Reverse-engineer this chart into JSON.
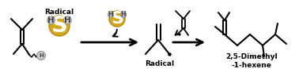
{
  "bg_color": "#ffffff",
  "text_radical_top": "Radical",
  "text_radical_bottom": "Radical",
  "text_product": "2,5-Dimethyl\n-1-hexene",
  "S_color": "#D4A820",
  "S_outline": "#B8860B",
  "H_color": "#C8C8C8",
  "H_outline": "#888888",
  "fig_width": 3.78,
  "fig_height": 1.06,
  "dpi": 100
}
